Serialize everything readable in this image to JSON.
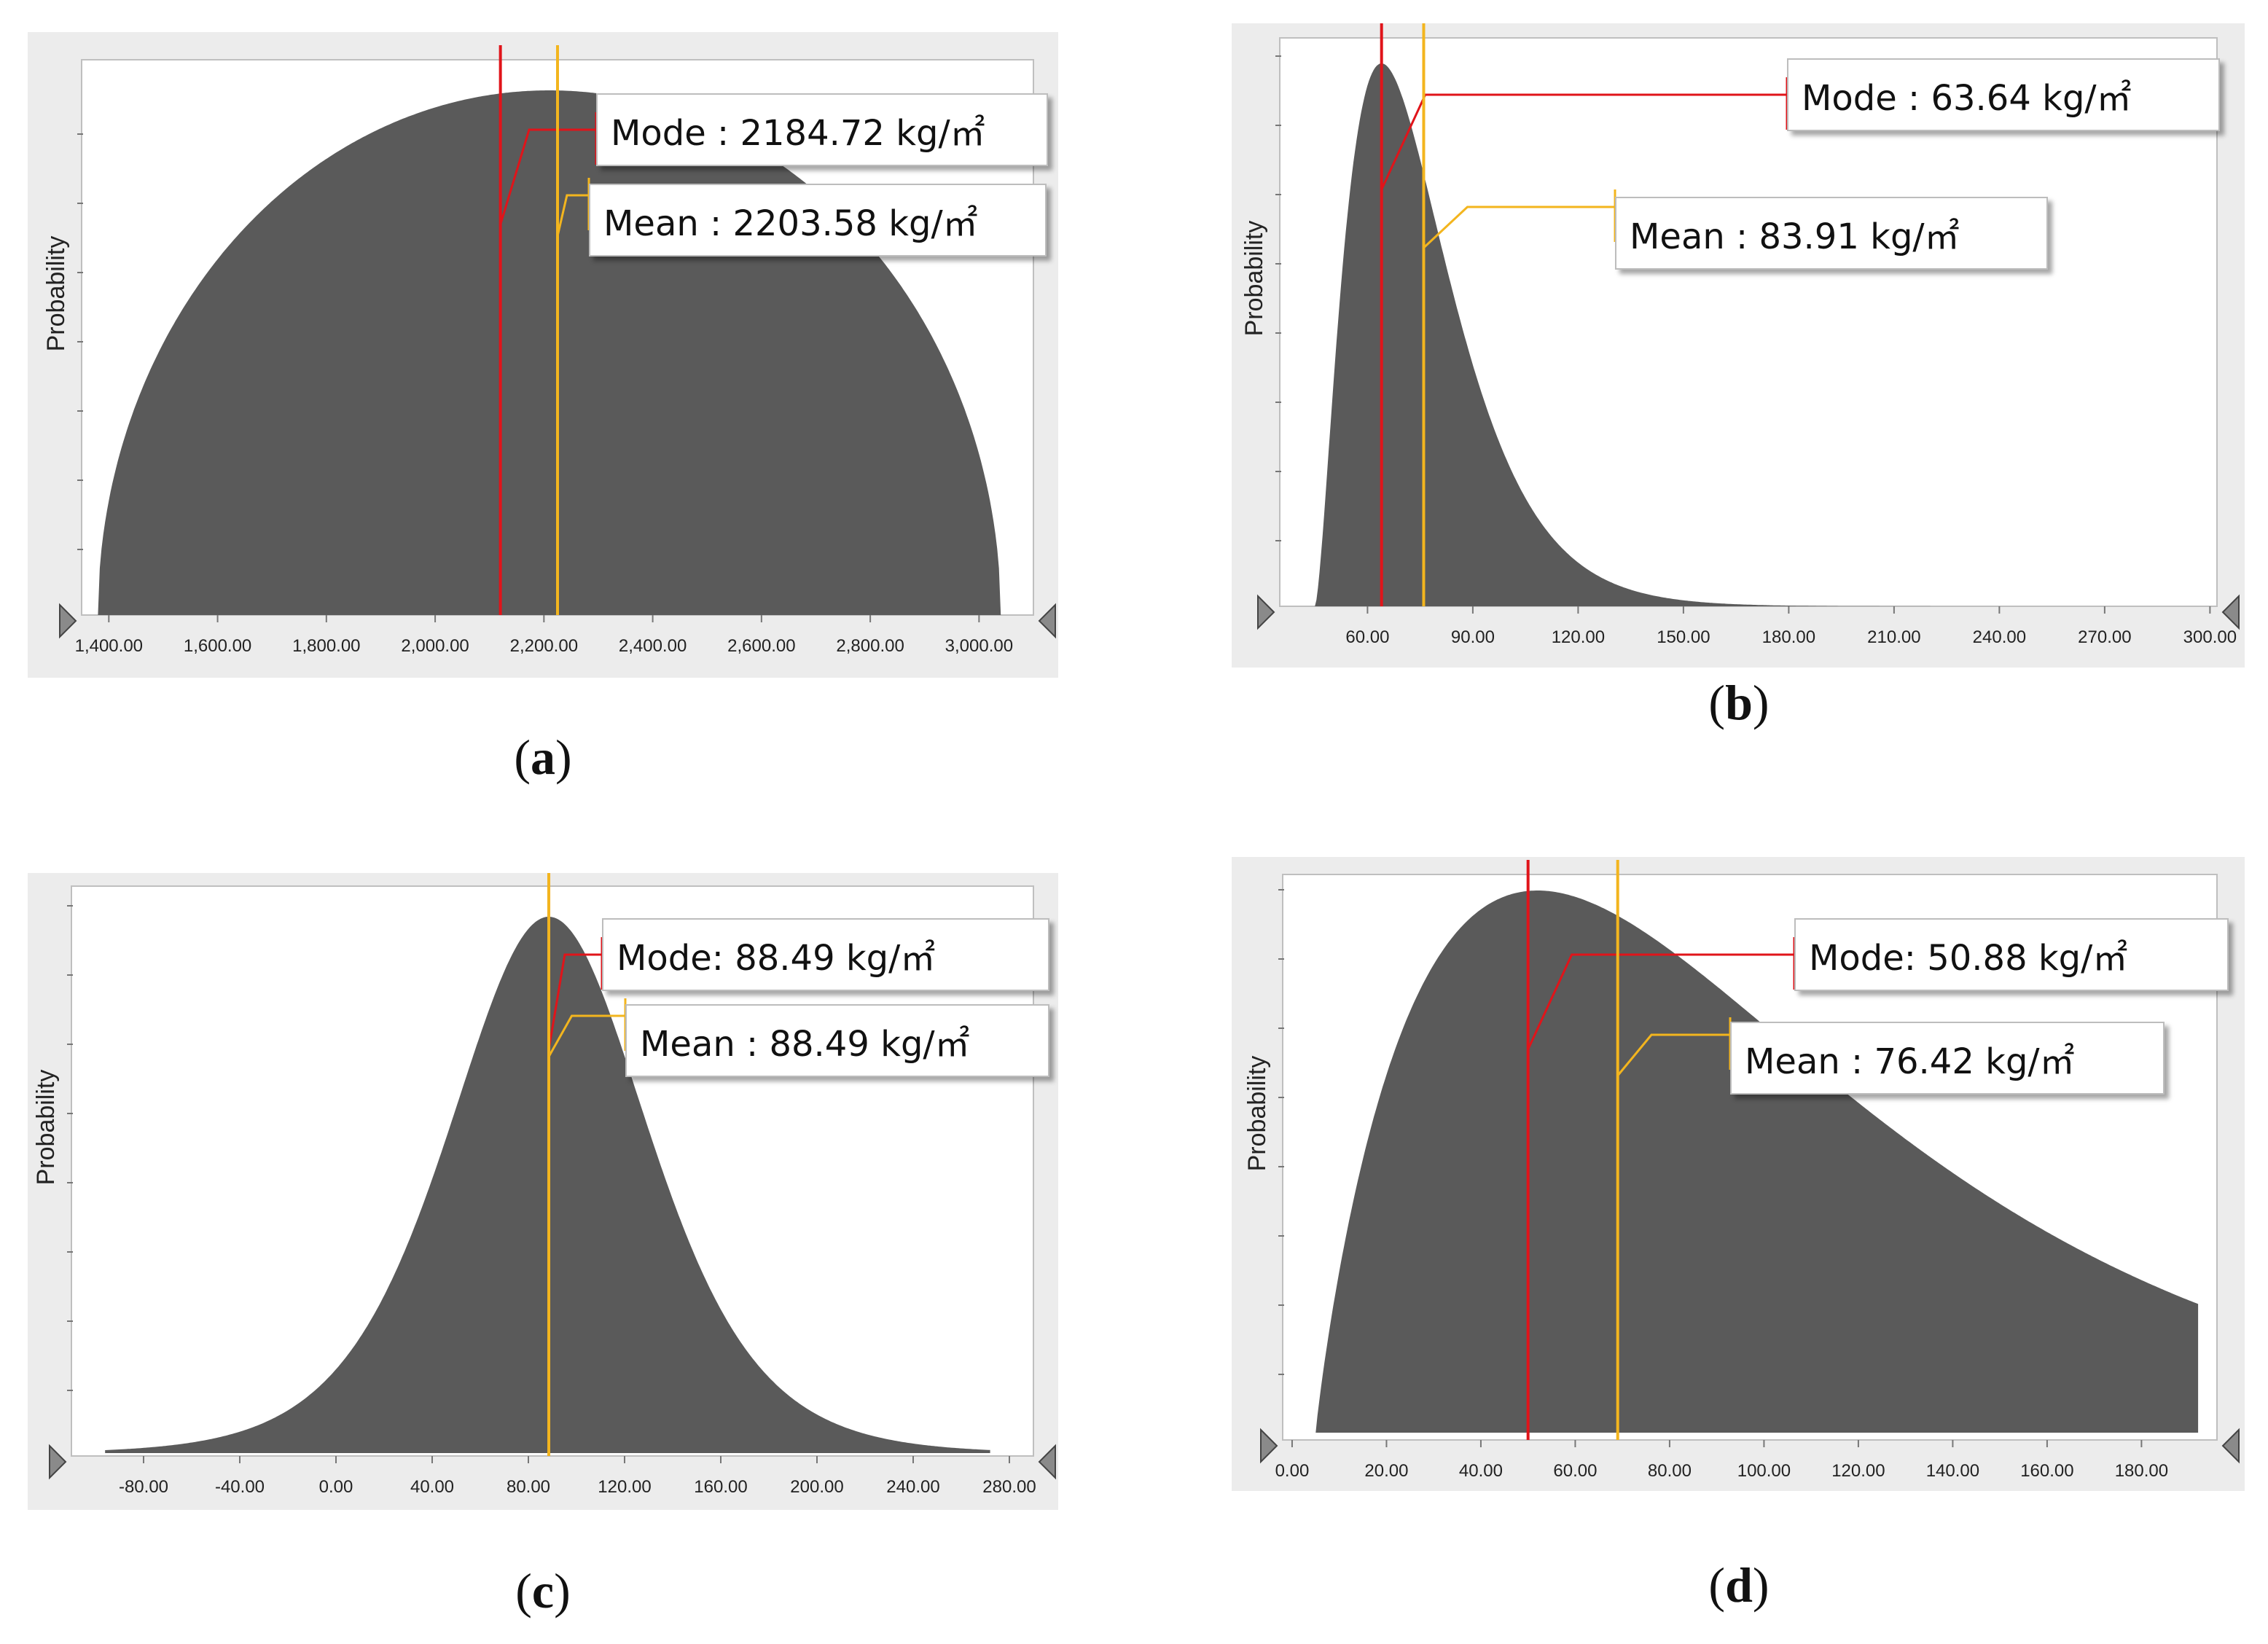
{
  "chart_data": [
    {
      "id": "a",
      "type": "area",
      "panel_label": "a",
      "ylabel": "Probability",
      "xlim": [
        1350,
        3100
      ],
      "x_ticks": [
        1400,
        1600,
        1800,
        2000,
        2200,
        2400,
        2600,
        2800,
        3000
      ],
      "x_tick_labels": [
        "1,400.00",
        "1,600.00",
        "1,800.00",
        "2,000.00",
        "2,200.00",
        "2,400.00",
        "2,600.00",
        "2,800.00",
        "3,000.00"
      ],
      "distribution": {
        "shape": "semicircle",
        "min": 1380,
        "max": 3040,
        "peak": 2210
      },
      "mode": {
        "value": 2184.72,
        "line_x": 2120,
        "label": "Mode : 2184.72 kg/㎡"
      },
      "mean": {
        "value": 2203.58,
        "line_x": 2225,
        "label": "Mean : 2203.58 kg/㎡"
      }
    },
    {
      "id": "b",
      "type": "area",
      "panel_label": "b",
      "ylabel": "Probability",
      "xlim": [
        35,
        302
      ],
      "x_ticks": [
        60,
        90,
        120,
        150,
        180,
        210,
        240,
        270,
        300
      ],
      "x_tick_labels": [
        "60.00",
        "90.00",
        "120.00",
        "150.00",
        "180.00",
        "210.00",
        "240.00",
        "270.00",
        "300.00"
      ],
      "distribution": {
        "shape": "right-skewed",
        "min": 45,
        "max": 265,
        "peak": 64
      },
      "mode": {
        "value": 63.64,
        "line_x": 64,
        "label": "Mode : 63.64 kg/㎡"
      },
      "mean": {
        "value": 83.91,
        "line_x": 76,
        "label": "Mean : 83.91 kg/㎡"
      }
    },
    {
      "id": "c",
      "type": "area",
      "panel_label": "c",
      "ylabel": "Probability",
      "xlim": [
        -110,
        290
      ],
      "x_ticks": [
        -80,
        -40,
        0,
        40,
        80,
        120,
        160,
        200,
        240,
        280
      ],
      "x_tick_labels": [
        "-80.00",
        "-40.00",
        "0.00",
        "40.00",
        "80.00",
        "120.00",
        "160.00",
        "200.00",
        "240.00",
        "280.00"
      ],
      "distribution": {
        "shape": "logistic",
        "min": -96,
        "max": 272,
        "peak": 88.49
      },
      "mode": {
        "value": 88.49,
        "line_x": 88.49,
        "label": "Mode: 88.49 kg/㎡"
      },
      "mean": {
        "value": 88.49,
        "line_x": 88.49,
        "label": "Mean : 88.49 kg/㎡"
      }
    },
    {
      "id": "d",
      "type": "area",
      "panel_label": "d",
      "ylabel": "Probability",
      "xlim": [
        -2,
        196
      ],
      "x_ticks": [
        0,
        20,
        40,
        60,
        80,
        100,
        120,
        140,
        160,
        180
      ],
      "x_tick_labels": [
        "0.00",
        "20.00",
        "40.00",
        "60.00",
        "80.00",
        "100.00",
        "120.00",
        "140.00",
        "160.00",
        "180.00"
      ],
      "distribution": {
        "shape": "gamma-like",
        "min": 5,
        "max": 192,
        "peak": 52
      },
      "mode": {
        "value": 50.88,
        "line_x": 50,
        "label": "Mode: 50.88 kg/㎡"
      },
      "mean": {
        "value": 76.42,
        "line_x": 69,
        "label": "Mean : 76.42 kg/㎡"
      }
    }
  ],
  "colors": {
    "panel_bg": "#ececec",
    "plot_bg": "#ffffff",
    "fill": "#5a5a5a",
    "mode_line": "#e0141a",
    "mean_line": "#f3b51e"
  }
}
